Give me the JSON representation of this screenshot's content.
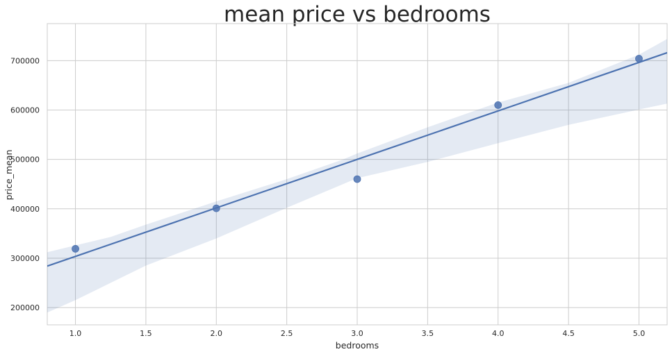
{
  "chart_data": {
    "type": "scatter",
    "title": "mean price vs bedrooms",
    "xlabel": "bedrooms",
    "ylabel": "price_mean",
    "xlim": [
      0.8,
      5.2
    ],
    "ylim": [
      165000,
      775000
    ],
    "x_ticks": [
      1.0,
      1.5,
      2.0,
      2.5,
      3.0,
      3.5,
      4.0,
      4.5,
      5.0
    ],
    "x_tick_labels": [
      "1.0",
      "1.5",
      "2.0",
      "2.5",
      "3.0",
      "3.5",
      "4.0",
      "4.5",
      "5.0"
    ],
    "y_ticks": [
      200000,
      300000,
      400000,
      500000,
      600000,
      700000
    ],
    "y_tick_labels": [
      "200000",
      "300000",
      "400000",
      "500000",
      "600000",
      "700000"
    ],
    "grid": true,
    "series": [
      {
        "x": [
          1,
          2,
          3,
          4,
          5
        ],
        "y": [
          319000,
          401000,
          460000,
          610000,
          704000
        ],
        "color": "#4c72b0"
      }
    ],
    "regression": {
      "x": [
        0.8,
        5.2
      ],
      "y": [
        284000,
        716000
      ],
      "color": "#4c72b0"
    },
    "confidence_band": {
      "color": "#4c72b0",
      "x": [
        0.8,
        1.0,
        1.25,
        1.5,
        2.0,
        2.5,
        2.9,
        3.0,
        3.5,
        4.0,
        4.5,
        5.0,
        5.2
      ],
      "upper": [
        312000,
        326000,
        343000,
        368000,
        415000,
        460000,
        500000,
        512000,
        565000,
        615000,
        655000,
        712000,
        744000
      ],
      "lower": [
        190000,
        215000,
        250000,
        285000,
        340000,
        402000,
        450000,
        462000,
        495000,
        533000,
        570000,
        601000,
        613000
      ]
    }
  }
}
